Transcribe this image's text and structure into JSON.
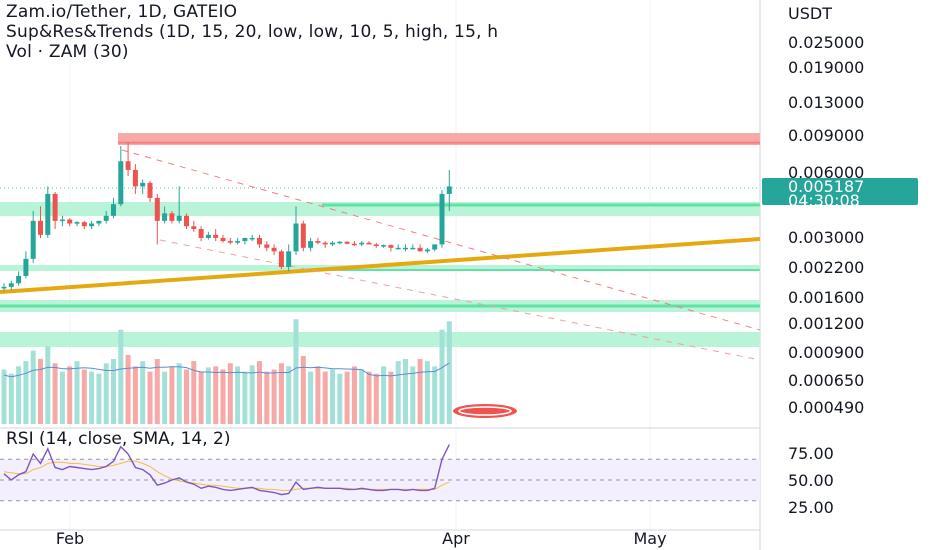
{
  "header": {
    "symbol_line": "Zam.io/Tether, 1D, GATEIO",
    "indicator_line": "Sup&Res&Trends (1D, 15, 20, low, low, 10, 5, high, 15, h",
    "volume_line": "Vol · ZAM (30)"
  },
  "rsi": {
    "legend": "RSI (14, close, SMA, 14, 2)"
  },
  "price_axis": {
    "currency": "USDT",
    "last_price": "0.005187",
    "countdown": "04:30:08"
  },
  "colors": {
    "up": "#26a69a",
    "down": "#ef5350",
    "resistance_zone": "#f7a8a8",
    "support_zone": "#b9f3d8",
    "support_line": "#5fe3a4",
    "trend_line": "#e5a910",
    "rsi_line": "#7e57c2",
    "rsi_ma": "#f0c040",
    "vol_ma": "#5b8dd6"
  },
  "chart_data": [
    {
      "type": "candlestick",
      "price_scale": "log",
      "y_ticks": [
        "0.025000",
        "0.019000",
        "0.013000",
        "0.009000",
        "0.006000",
        "0.003000",
        "0.002200",
        "0.001600",
        "0.001200",
        "0.000900",
        "0.000650",
        "0.000490"
      ],
      "x_ticks": [
        "Feb",
        "Apr",
        "May"
      ],
      "ohlc": [
        [
          0.00175,
          0.00185,
          0.0017,
          0.00178
        ],
        [
          0.00178,
          0.0019,
          0.00172,
          0.00185
        ],
        [
          0.00185,
          0.0021,
          0.0018,
          0.002
        ],
        [
          0.002,
          0.0026,
          0.00195,
          0.0024
        ],
        [
          0.0024,
          0.004,
          0.0023,
          0.0036
        ],
        [
          0.0036,
          0.0042,
          0.003,
          0.0031
        ],
        [
          0.0031,
          0.0052,
          0.003,
          0.0048
        ],
        [
          0.0048,
          0.0049,
          0.0033,
          0.0036
        ],
        [
          0.0036,
          0.0038,
          0.0034,
          0.00365
        ],
        [
          0.00365,
          0.0037,
          0.0034,
          0.0035
        ],
        [
          0.0035,
          0.0036,
          0.0034,
          0.00355
        ],
        [
          0.00355,
          0.0036,
          0.0033,
          0.0034
        ],
        [
          0.0034,
          0.0036,
          0.0033,
          0.0035
        ],
        [
          0.0035,
          0.0036,
          0.0034,
          0.0036
        ],
        [
          0.0036,
          0.004,
          0.0035,
          0.0038
        ],
        [
          0.0038,
          0.0046,
          0.0037,
          0.0043
        ],
        [
          0.0043,
          0.008,
          0.0042,
          0.0068
        ],
        [
          0.0068,
          0.0083,
          0.0058,
          0.0062
        ],
        [
          0.0062,
          0.0066,
          0.0048,
          0.0052
        ],
        [
          0.0052,
          0.0056,
          0.0048,
          0.0054
        ],
        [
          0.0054,
          0.0055,
          0.0044,
          0.0046
        ],
        [
          0.0046,
          0.0048,
          0.0028,
          0.0036
        ],
        [
          0.0036,
          0.0042,
          0.0035,
          0.0039
        ],
        [
          0.0039,
          0.004,
          0.0035,
          0.0036
        ],
        [
          0.0036,
          0.0052,
          0.0035,
          0.0038
        ],
        [
          0.0038,
          0.0039,
          0.0033,
          0.0034
        ],
        [
          0.0034,
          0.0036,
          0.0032,
          0.0033
        ],
        [
          0.0033,
          0.0034,
          0.0029,
          0.003
        ],
        [
          0.003,
          0.0032,
          0.00295,
          0.0031
        ],
        [
          0.0031,
          0.0033,
          0.0029,
          0.003
        ],
        [
          0.003,
          0.0031,
          0.00285,
          0.0029
        ],
        [
          0.0029,
          0.003,
          0.0028,
          0.00285
        ],
        [
          0.00285,
          0.003,
          0.0028,
          0.0029
        ],
        [
          0.0029,
          0.003,
          0.0028,
          0.003
        ],
        [
          0.003,
          0.0031,
          0.0029,
          0.003
        ],
        [
          0.003,
          0.0031,
          0.0027,
          0.0028
        ],
        [
          0.0028,
          0.0029,
          0.0026,
          0.0027
        ],
        [
          0.0027,
          0.0028,
          0.0025,
          0.0026
        ],
        [
          0.0026,
          0.00265,
          0.00215,
          0.0022
        ],
        [
          0.0022,
          0.0028,
          0.0021,
          0.0026
        ],
        [
          0.0026,
          0.0042,
          0.0025,
          0.0035
        ],
        [
          0.0035,
          0.0036,
          0.0026,
          0.0027
        ],
        [
          0.0027,
          0.003,
          0.0026,
          0.0029
        ],
        [
          0.0029,
          0.003,
          0.0028,
          0.00285
        ],
        [
          0.00285,
          0.0029,
          0.0027,
          0.0028
        ],
        [
          0.0028,
          0.0029,
          0.00275,
          0.00285
        ],
        [
          0.00285,
          0.0029,
          0.0028,
          0.00288
        ],
        [
          0.00288,
          0.0029,
          0.0028,
          0.00282
        ],
        [
          0.00282,
          0.0029,
          0.00275,
          0.0028
        ],
        [
          0.0028,
          0.0029,
          0.00275,
          0.00285
        ],
        [
          0.00285,
          0.0029,
          0.0028,
          0.0028
        ],
        [
          0.0028,
          0.00285,
          0.0027,
          0.00275
        ],
        [
          0.00275,
          0.0028,
          0.0027,
          0.00278
        ],
        [
          0.00278,
          0.0028,
          0.0026,
          0.0027
        ],
        [
          0.0027,
          0.0028,
          0.00265,
          0.0027
        ],
        [
          0.0027,
          0.0028,
          0.0026,
          0.0027
        ],
        [
          0.0027,
          0.0028,
          0.00265,
          0.0027
        ],
        [
          0.0027,
          0.0028,
          0.0026,
          0.0026
        ],
        [
          0.0026,
          0.0027,
          0.00255,
          0.00265
        ],
        [
          0.00265,
          0.0028,
          0.0026,
          0.0028
        ],
        [
          0.0028,
          0.005,
          0.0027,
          0.0048
        ],
        [
          0.0048,
          0.0062,
          0.004,
          0.0052
        ]
      ],
      "volume": [
        0.52,
        0.48,
        0.55,
        0.6,
        0.7,
        0.62,
        0.74,
        0.58,
        0.5,
        0.55,
        0.6,
        0.52,
        0.5,
        0.48,
        0.58,
        0.62,
        0.9,
        0.66,
        0.55,
        0.6,
        0.5,
        0.62,
        0.5,
        0.55,
        0.58,
        0.52,
        0.6,
        0.5,
        0.54,
        0.55,
        0.52,
        0.58,
        0.55,
        0.5,
        0.56,
        0.6,
        0.5,
        0.52,
        0.58,
        0.55,
        1.0,
        0.65,
        0.5,
        0.55,
        0.5,
        0.52,
        0.48,
        0.5,
        0.55,
        0.52,
        0.5,
        0.48,
        0.55,
        0.5,
        0.6,
        0.62,
        0.55,
        0.62,
        0.6,
        0.55,
        0.9,
        0.98
      ],
      "rsi": [
        56,
        50,
        55,
        58,
        75,
        66,
        80,
        62,
        60,
        63,
        62,
        61,
        60,
        61,
        63,
        68,
        82,
        75,
        62,
        60,
        55,
        45,
        47,
        50,
        52,
        48,
        46,
        42,
        44,
        43,
        41,
        40,
        41,
        42,
        43,
        40,
        39,
        38,
        36,
        37,
        48,
        41,
        42,
        43,
        42,
        42,
        42,
        41,
        41,
        42,
        41,
        40,
        40,
        41,
        41,
        40,
        41,
        40,
        40,
        42,
        70,
        84
      ],
      "rsi_ma": [
        58,
        57,
        56,
        56,
        60,
        62,
        66,
        67,
        67,
        66,
        66,
        65,
        64,
        63,
        63,
        64,
        66,
        68,
        68,
        66,
        63,
        58,
        54,
        51,
        49,
        48,
        47,
        46,
        45,
        45,
        44,
        43,
        42,
        42,
        42,
        42,
        41,
        41,
        40,
        40,
        41,
        42,
        42,
        42,
        42,
        42,
        42,
        42,
        41,
        41,
        41,
        41,
        41,
        41,
        41,
        41,
        41,
        41,
        41,
        41,
        45,
        48
      ],
      "rsi_ticks": [
        "75.00",
        "50.00",
        "25.00"
      ]
    }
  ]
}
